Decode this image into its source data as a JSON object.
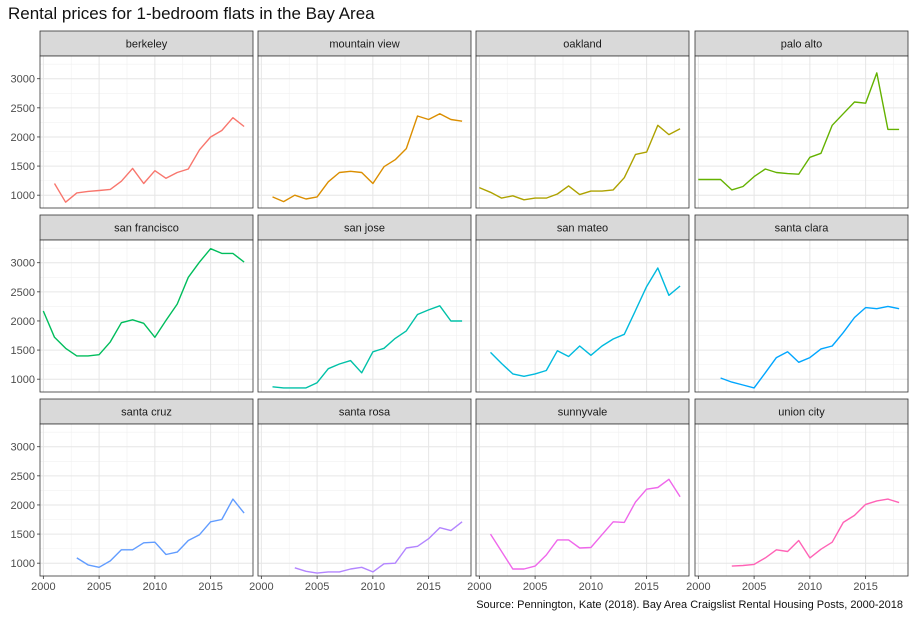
{
  "chart_data": {
    "type": "line",
    "title": "Rental prices for 1-bedroom flats in the Bay Area",
    "caption": "Source: Pennington, Kate (2018). Bay Area Craigslist Rental Housing Posts, 2000-2018",
    "xlabel": "",
    "ylabel": "",
    "xlim": [
      1999.7,
      2018.8
    ],
    "ylim": [
      780,
      3390
    ],
    "x_ticks": [
      2000,
      2005,
      2010,
      2015
    ],
    "y_ticks": [
      1000,
      1500,
      2000,
      2500,
      3000
    ],
    "grid": true,
    "legend": "none",
    "facets": [
      {
        "name": "berkeley",
        "color": "#F8766D",
        "x": [
          2001,
          2002,
          2003,
          2004,
          2005,
          2006,
          2007,
          2008,
          2009,
          2010,
          2011,
          2012,
          2013,
          2014,
          2015,
          2016,
          2017,
          2018
        ],
        "y": [
          1200,
          880,
          1040,
          1065,
          1080,
          1100,
          1240,
          1460,
          1200,
          1420,
          1290,
          1390,
          1450,
          1780,
          2000,
          2110,
          2330,
          2180
        ]
      },
      {
        "name": "mountain view",
        "color": "#DB8E00",
        "x": [
          2001,
          2002,
          2003,
          2004,
          2005,
          2006,
          2007,
          2008,
          2009,
          2010,
          2011,
          2012,
          2013,
          2014,
          2015,
          2016,
          2017,
          2018
        ],
        "y": [
          970,
          890,
          1000,
          935,
          970,
          1230,
          1390,
          1410,
          1390,
          1200,
          1490,
          1610,
          1800,
          2360,
          2300,
          2400,
          2300,
          2270
        ]
      },
      {
        "name": "oakland",
        "color": "#AEA200",
        "x": [
          2000,
          2001,
          2002,
          2003,
          2004,
          2005,
          2006,
          2007,
          2008,
          2009,
          2010,
          2011,
          2012,
          2013,
          2014,
          2015,
          2016,
          2017,
          2018
        ],
        "y": [
          1130,
          1050,
          950,
          990,
          920,
          950,
          950,
          1020,
          1160,
          1010,
          1070,
          1070,
          1090,
          1300,
          1700,
          1740,
          2200,
          2040,
          2140
        ]
      },
      {
        "name": "palo alto",
        "color": "#64B200",
        "x": [
          2000,
          2001,
          2002,
          2003,
          2004,
          2005,
          2006,
          2007,
          2008,
          2009,
          2010,
          2011,
          2012,
          2013,
          2014,
          2015,
          2016,
          2017,
          2018
        ],
        "y": [
          1270,
          1270,
          1270,
          1090,
          1150,
          1320,
          1450,
          1390,
          1370,
          1360,
          1650,
          1720,
          2200,
          2400,
          2600,
          2580,
          3100,
          2130,
          2130
        ]
      },
      {
        "name": "san francisco",
        "color": "#00BD5C",
        "x": [
          2000,
          2001,
          2002,
          2003,
          2004,
          2005,
          2006,
          2007,
          2008,
          2009,
          2010,
          2011,
          2012,
          2013,
          2014,
          2015,
          2016,
          2017,
          2018
        ],
        "y": [
          2170,
          1720,
          1530,
          1400,
          1400,
          1420,
          1640,
          1970,
          2020,
          1960,
          1720,
          2010,
          2290,
          2750,
          3010,
          3240,
          3160,
          3160,
          3010
        ]
      },
      {
        "name": "san jose",
        "color": "#00C1A7",
        "x": [
          2001,
          2002,
          2003,
          2004,
          2005,
          2006,
          2007,
          2008,
          2009,
          2010,
          2011,
          2012,
          2013,
          2014,
          2015,
          2016,
          2017,
          2018
        ],
        "y": [
          870,
          850,
          850,
          850,
          940,
          1180,
          1260,
          1320,
          1110,
          1470,
          1530,
          1700,
          1830,
          2110,
          2190,
          2260,
          2000,
          2000
        ]
      },
      {
        "name": "san mateo",
        "color": "#00BADE",
        "x": [
          2001,
          2002,
          2003,
          2004,
          2005,
          2006,
          2007,
          2008,
          2009,
          2010,
          2011,
          2012,
          2013,
          2014,
          2015,
          2016,
          2017,
          2018
        ],
        "y": [
          1460,
          1270,
          1090,
          1050,
          1090,
          1150,
          1490,
          1390,
          1570,
          1410,
          1570,
          1690,
          1770,
          2180,
          2590,
          2910,
          2440,
          2600
        ]
      },
      {
        "name": "santa clara",
        "color": "#00A6FF",
        "x": [
          2002,
          2003,
          2004,
          2005,
          2006,
          2007,
          2008,
          2009,
          2010,
          2011,
          2012,
          2013,
          2014,
          2015,
          2016,
          2017,
          2018
        ],
        "y": [
          1020,
          950,
          900,
          850,
          1110,
          1370,
          1470,
          1290,
          1370,
          1520,
          1570,
          1800,
          2060,
          2230,
          2210,
          2250,
          2210
        ]
      },
      {
        "name": "santa cruz",
        "color": "#B385FF",
        "x": [
          2003,
          2004,
          2005,
          2006,
          2007,
          2008,
          2009,
          2010,
          2011,
          2012,
          2013,
          2014,
          2015,
          2016,
          2017,
          2018
        ],
        "y": [
          1090,
          970,
          930,
          1040,
          1230,
          1230,
          1350,
          1360,
          1150,
          1190,
          1390,
          1490,
          1710,
          1750,
          2100,
          1860
        ],
        "color_override": "#619CFF"
      },
      {
        "name": "santa rosa",
        "color": "#B385FF",
        "x": [
          2003,
          2004,
          2005,
          2006,
          2007,
          2008,
          2009,
          2010,
          2011,
          2012,
          2013,
          2014,
          2015,
          2016,
          2017,
          2018
        ],
        "y": [
          920,
          860,
          830,
          850,
          850,
          900,
          930,
          850,
          990,
          1000,
          1260,
          1290,
          1420,
          1610,
          1560,
          1710
        ]
      },
      {
        "name": "sunnyvale",
        "color": "#EF67EB",
        "x": [
          2001,
          2002,
          2003,
          2004,
          2005,
          2006,
          2007,
          2008,
          2009,
          2010,
          2011,
          2012,
          2013,
          2014,
          2015,
          2016,
          2017,
          2018
        ],
        "y": [
          1500,
          1200,
          900,
          900,
          950,
          1140,
          1400,
          1400,
          1260,
          1270,
          1490,
          1710,
          1700,
          2050,
          2270,
          2300,
          2440,
          2140
        ]
      },
      {
        "name": "union city",
        "color": "#FF63B6",
        "x": [
          2003,
          2004,
          2005,
          2006,
          2007,
          2008,
          2009,
          2010,
          2011,
          2012,
          2013,
          2014,
          2015,
          2016,
          2017,
          2018
        ],
        "y": [
          950,
          960,
          980,
          1090,
          1230,
          1200,
          1390,
          1090,
          1240,
          1360,
          1700,
          1820,
          2010,
          2070,
          2100,
          2040
        ]
      }
    ]
  }
}
